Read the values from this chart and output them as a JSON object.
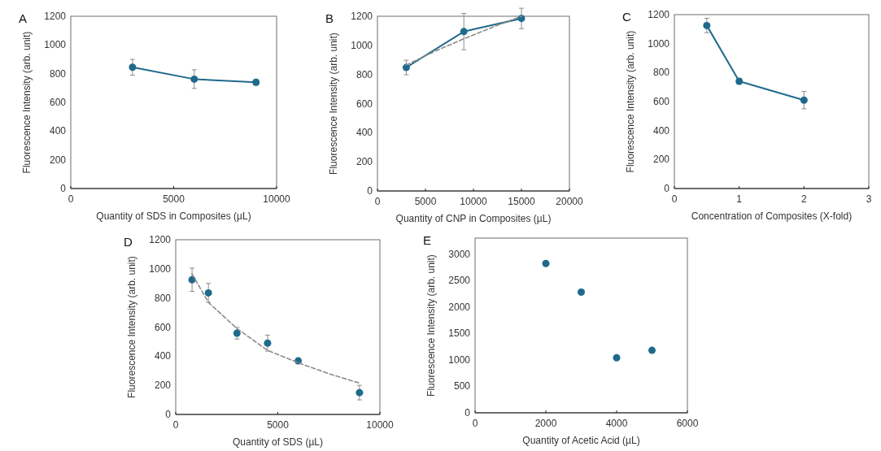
{
  "chart_data": [
    {
      "type": "line",
      "title": "A",
      "xlabel": "Quantity of SDS in Composites (µL)",
      "ylabel": "Fluorescence Intensity (arb. unit)",
      "xlim": [
        0,
        10000
      ],
      "xticks": [
        0,
        5000,
        10000
      ],
      "ylim": [
        0,
        1200
      ],
      "yticks": [
        0,
        200,
        400,
        600,
        800,
        1000,
        1200
      ],
      "marker": "circle",
      "grid": false,
      "series": [
        {
          "color": "#1f6a8c",
          "x": [
            3000,
            6000,
            9000
          ],
          "values": [
            845,
            762,
            740
          ],
          "errors": [
            55,
            65,
            20
          ]
        }
      ]
    },
    {
      "type": "line",
      "title": "B",
      "xlabel": "Quantity of CNP in Composites (µL)",
      "ylabel": "Fluorescence Intensity (arb. unit)",
      "xlim": [
        0,
        20000
      ],
      "xticks": [
        0,
        5000,
        10000,
        15000,
        20000
      ],
      "ylim": [
        0,
        1200
      ],
      "yticks": [
        0,
        200,
        400,
        600,
        800,
        1000,
        1200
      ],
      "marker": "circle",
      "grid": false,
      "series": [
        {
          "color": "#1f6a8c",
          "x": [
            3000,
            9000,
            15000
          ],
          "values": [
            848,
            1095,
            1185
          ],
          "errors": [
            50,
            125,
            70
          ]
        },
        {
          "type": "line",
          "color": "#8c8c8c",
          "line_style": "dashed",
          "marker": "none",
          "x": [
            3000,
            6000,
            9000,
            12000,
            15000
          ],
          "values": [
            865,
            960,
            1045,
            1125,
            1200
          ]
        }
      ]
    },
    {
      "type": "line",
      "title": "C",
      "xlabel": "Concentration of Composites (X-fold)",
      "ylabel": "Fluorescence Intensity (arb. unit)",
      "xlim": [
        0,
        3
      ],
      "xticks": [
        0,
        1,
        2,
        3
      ],
      "ylim": [
        0,
        1200
      ],
      "yticks": [
        0,
        200,
        400,
        600,
        800,
        1000,
        1200
      ],
      "marker": "circle",
      "grid": false,
      "series": [
        {
          "color": "#1f6a8c",
          "x": [
            0.5,
            1,
            2
          ],
          "values": [
            1125,
            740,
            610
          ],
          "errors": [
            50,
            20,
            60
          ]
        }
      ]
    },
    {
      "type": "scatter",
      "title": "D",
      "xlabel": "Quantity of SDS (µL)",
      "ylabel": "Fluorescence Intensity (arb. unit)",
      "xlim": [
        0,
        10000
      ],
      "xticks": [
        0,
        5000,
        10000
      ],
      "ylim": [
        0,
        1200
      ],
      "yticks": [
        0,
        200,
        400,
        600,
        800,
        1000,
        1200
      ],
      "marker": "circle",
      "grid": false,
      "series": [
        {
          "color": "#1f6a8c",
          "x": [
            800,
            1600,
            3000,
            4500,
            6000,
            9000
          ],
          "values": [
            925,
            835,
            558,
            490,
            368,
            150
          ],
          "errors": [
            80,
            65,
            40,
            55,
            20,
            50
          ]
        },
        {
          "type": "line",
          "color": "#8c8c8c",
          "line_style": "dashed",
          "marker": "none",
          "x": [
            800,
            1600,
            3000,
            4500,
            6000,
            7500,
            9000
          ],
          "values": [
            965,
            770,
            590,
            440,
            355,
            280,
            215
          ]
        }
      ]
    },
    {
      "type": "scatter",
      "title": "E",
      "xlabel": "Quantity of Acetic Acid (µL)",
      "ylabel": "Fluorescence Intensity (arb. unit)",
      "xlim": [
        0,
        6000
      ],
      "xticks": [
        0,
        2000,
        4000,
        6000
      ],
      "ylim": [
        0,
        3300
      ],
      "yticks": [
        0,
        500,
        1000,
        1500,
        2000,
        2500,
        3000
      ],
      "marker": "circle",
      "grid": false,
      "series": [
        {
          "color": "#1f6a8c",
          "x": [
            2000,
            3000,
            4000,
            5000
          ],
          "values": [
            2820,
            2280,
            1040,
            1180
          ]
        }
      ]
    }
  ]
}
